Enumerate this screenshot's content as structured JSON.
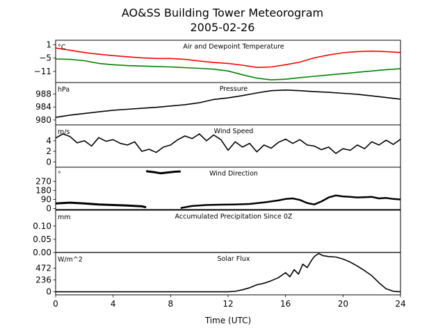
{
  "title_line1": "AO&SS Building Tower Meteorogram",
  "title_line2": "2005-02-26",
  "chart_data": {
    "type": "line",
    "x_axis": {
      "label": "Time (UTC)",
      "range": [
        0,
        24
      ],
      "ticks": [
        0,
        4,
        8,
        12,
        16,
        20,
        24
      ]
    },
    "panels": [
      {
        "key": "temp",
        "title": "Air and Dewpoint Temperature",
        "unit": "°C",
        "ylim": [
          -16,
          3
        ],
        "ticks": [
          1,
          -5,
          -11
        ],
        "tick_labels": [
          "1",
          "−5",
          "−11"
        ],
        "series": [
          {
            "color": "#ff0000",
            "x": [
              0,
              1,
              2,
              3,
              4,
              5,
              6,
              7,
              8,
              9,
              10,
              11,
              12,
              13,
              14,
              15,
              16,
              17,
              18,
              19,
              20,
              21,
              22,
              23,
              24
            ],
            "y": [
              -0.5,
              -1.5,
              -2.5,
              -3.3,
              -3.9,
              -4.4,
              -4.9,
              -5.2,
              -5.2,
              -5.6,
              -6.3,
              -7,
              -7.4,
              -8.2,
              -9.2,
              -9,
              -8,
              -6.8,
              -4.9,
              -3.6,
              -2.6,
              -2.1,
              -1.9,
              -2.1,
              -2.5
            ]
          },
          {
            "color": "#008000",
            "x": [
              0,
              1,
              2,
              3,
              4,
              5,
              6,
              7,
              8,
              9,
              10,
              11,
              12,
              13,
              14,
              15,
              16,
              17,
              18,
              19,
              20,
              21,
              22,
              23,
              24
            ],
            "y": [
              -5.4,
              -5.6,
              -6.2,
              -7.4,
              -8,
              -8.4,
              -8.6,
              -8.8,
              -9,
              -9.3,
              -9.6,
              -10,
              -10.8,
              -12.5,
              -14,
              -14.8,
              -14.5,
              -13.8,
              -13.2,
              -12.6,
              -12,
              -11.4,
              -10.8,
              -10.2,
              -9.8
            ]
          }
        ]
      },
      {
        "key": "pressure",
        "title": "Pressure",
        "unit": "hPa",
        "ylim": [
          978.5,
          991.5
        ],
        "ticks": [
          988,
          984,
          980
        ],
        "tick_labels": [
          "988",
          "984",
          "980"
        ],
        "series": [
          {
            "color": "#000000",
            "x": [
              0,
              1,
              2,
              3,
              4,
              5,
              6,
              7,
              8,
              9,
              10,
              11,
              12,
              13,
              14,
              15,
              16,
              17,
              18,
              19,
              20,
              21,
              22,
              23,
              24
            ],
            "y": [
              980.8,
              981.5,
              982,
              982.5,
              983,
              983.3,
              983.6,
              983.9,
              984.3,
              984.7,
              985.3,
              986.3,
              986.8,
              987.5,
              988.3,
              989,
              989.2,
              989,
              988.7,
              988.5,
              988.2,
              987.9,
              987.4,
              986.9,
              986.4
            ]
          }
        ]
      },
      {
        "key": "wind_speed",
        "title": "Wind Speed",
        "unit": "m/s",
        "ylim": [
          -1,
          7
        ],
        "ticks": [
          4,
          2,
          0
        ],
        "tick_labels": [
          "4",
          "2",
          "0"
        ],
        "series": [
          {
            "color": "#000000",
            "x": [
              0,
              0.5,
              1,
              1.5,
              2,
              2.5,
              3,
              3.5,
              4,
              4.5,
              5,
              5.5,
              6,
              6.5,
              7,
              7.5,
              8,
              8.5,
              9,
              9.5,
              10,
              10.5,
              11,
              11.5,
              12,
              12.5,
              13,
              13.5,
              14,
              14.5,
              15,
              15.5,
              16,
              16.5,
              17,
              17.5,
              18,
              18.5,
              19,
              19.5,
              20,
              20.5,
              21,
              21.5,
              22,
              22.5,
              23,
              23.5,
              24
            ],
            "y": [
              4.5,
              5.3,
              4.8,
              3.6,
              4,
              3,
              4.6,
              3.9,
              4.2,
              3.5,
              3.2,
              3.8,
              2,
              2.4,
              1.8,
              2.8,
              3.2,
              4.2,
              4.9,
              4.4,
              5.3,
              4,
              5.1,
              4.2,
              2.2,
              3.8,
              2.8,
              3.5,
              1.9,
              3.2,
              2.6,
              3.7,
              4.3,
              3.5,
              4.2,
              3.2,
              3,
              2.3,
              2.8,
              1.6,
              2.5,
              2.2,
              3.2,
              2.5,
              3.8,
              3.2,
              4.1,
              3.3,
              4.3
            ]
          }
        ]
      },
      {
        "key": "wind_direction",
        "title": "Wind Direction",
        "unit": "°",
        "ylim": [
          -10,
          410
        ],
        "ticks": [
          270,
          180,
          90,
          0
        ],
        "tick_labels": [
          "270",
          "180",
          "90",
          "0"
        ],
        "series": [
          {
            "color": "#000000",
            "x": [
              0,
              1,
              2,
              3,
              4,
              5,
              6,
              6.3
            ],
            "y": [
              50,
              58,
              50,
              40,
              35,
              30,
              22,
              12
            ]
          },
          {
            "color": "#000000",
            "x": [
              6.3,
              6.8,
              7.3,
              7.8,
              8.3,
              8.7
            ],
            "y": [
              370,
              362,
              350,
              358,
              365,
              368
            ]
          },
          {
            "color": "#000000",
            "x": [
              8.7,
              9.5,
              10.5,
              11.5,
              12.5,
              13.5,
              14.5,
              15.5,
              16,
              16.5,
              17,
              17.5,
              18,
              18.5,
              19,
              19.5,
              20,
              20.5,
              21,
              21.5,
              22,
              22.5,
              23,
              23.5,
              24
            ],
            "y": [
              5,
              25,
              35,
              38,
              40,
              45,
              60,
              80,
              95,
              100,
              85,
              55,
              40,
              70,
              110,
              130,
              120,
              115,
              110,
              112,
              115,
              100,
              105,
              95,
              90
            ]
          }
        ]
      },
      {
        "key": "precip",
        "title": "Accumulated Precipitation Since 0Z",
        "unit": "mm",
        "ylim": [
          0,
          0.16
        ],
        "ticks": [
          0.1,
          0.05,
          0
        ],
        "tick_labels": [
          "0.10",
          "0.05",
          "0.00"
        ],
        "series": [
          {
            "color": "#000000",
            "x": [
              0,
              24
            ],
            "y": [
              0,
              0
            ]
          }
        ]
      },
      {
        "key": "solar",
        "title": "Solar Flux",
        "unit": "W/m^2",
        "ylim": [
          -60,
          780
        ],
        "ticks": [
          472,
          236,
          0
        ],
        "tick_labels": [
          "472",
          "236",
          "0"
        ],
        "series": [
          {
            "color": "#000000",
            "x": [
              0,
              12,
              12.5,
              13,
              13.5,
              14,
              14.5,
              15,
              15.5,
              16,
              16.3,
              16.6,
              16.9,
              17.2,
              17.5,
              17.8,
              18,
              18.3,
              18.6,
              19,
              19.5,
              20,
              20.5,
              21,
              21.5,
              22,
              22.5,
              23,
              23.5,
              24
            ],
            "y": [
              0,
              0,
              10,
              40,
              80,
              140,
              170,
              220,
              280,
              380,
              300,
              440,
              350,
              550,
              480,
              620,
              700,
              760,
              720,
              700,
              690,
              650,
              590,
              510,
              420,
              320,
              180,
              60,
              10,
              0
            ]
          }
        ]
      }
    ]
  }
}
